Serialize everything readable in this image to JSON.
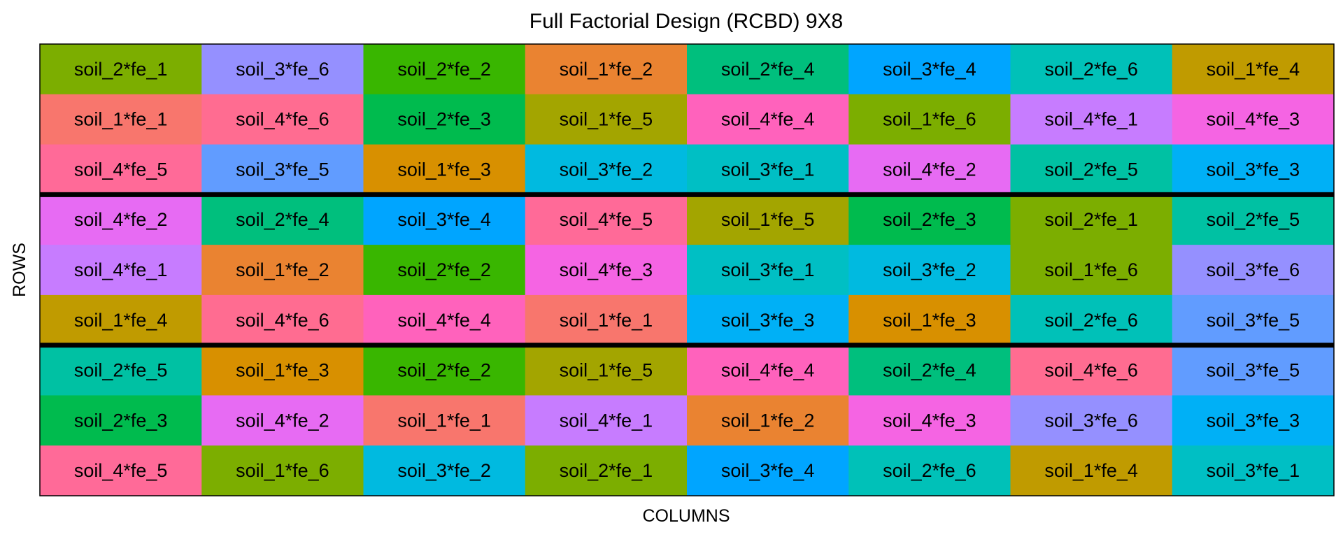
{
  "chart_data": {
    "type": "heatmap",
    "title": "Full Factorial Design (RCBD) 9X8",
    "xlabel": "COLUMNS",
    "ylabel": "ROWS",
    "n_rows": 9,
    "n_cols": 8,
    "block_boundaries_after_row": [
      3,
      6
    ],
    "colors": {
      "soil_1*fe_1": "#F8766D",
      "soil_1*fe_2": "#EA8331",
      "soil_1*fe_3": "#D89000",
      "soil_1*fe_4": "#C09B00",
      "soil_1*fe_5": "#A3A500",
      "soil_1*fe_6": "#7CAE00",
      "soil_2*fe_1": "#7CAE00",
      "soil_2*fe_2": "#39B600",
      "soil_2*fe_3": "#00BB4E",
      "soil_2*fe_4": "#00BF7D",
      "soil_2*fe_5": "#00C1A3",
      "soil_2*fe_6": "#00C1B8",
      "soil_3*fe_1": "#00BFC4",
      "soil_3*fe_2": "#00BAE0",
      "soil_3*fe_3": "#00B0F6",
      "soil_3*fe_4": "#00A5FF",
      "soil_3*fe_5": "#619CFF",
      "soil_3*fe_6": "#9590FF",
      "soil_4*fe_1": "#C77CFF",
      "soil_4*fe_2": "#E76BF3",
      "soil_4*fe_3": "#F564E3",
      "soil_4*fe_4": "#FF62BC",
      "soil_4*fe_5": "#FF6A98",
      "soil_4*fe_6": "#FF6C91"
    },
    "grid": [
      [
        "soil_2*fe_1",
        "soil_3*fe_6",
        "soil_2*fe_2",
        "soil_1*fe_2",
        "soil_2*fe_4",
        "soil_3*fe_4",
        "soil_2*fe_6",
        "soil_1*fe_4"
      ],
      [
        "soil_1*fe_1",
        "soil_4*fe_6",
        "soil_2*fe_3",
        "soil_1*fe_5",
        "soil_4*fe_4",
        "soil_1*fe_6",
        "soil_4*fe_1",
        "soil_4*fe_3"
      ],
      [
        "soil_4*fe_5",
        "soil_3*fe_5",
        "soil_1*fe_3",
        "soil_3*fe_2",
        "soil_3*fe_1",
        "soil_4*fe_2",
        "soil_2*fe_5",
        "soil_3*fe_3"
      ],
      [
        "soil_4*fe_2",
        "soil_2*fe_4",
        "soil_3*fe_4",
        "soil_4*fe_5",
        "soil_1*fe_5",
        "soil_2*fe_3",
        "soil_2*fe_1",
        "soil_2*fe_5"
      ],
      [
        "soil_4*fe_1",
        "soil_1*fe_2",
        "soil_2*fe_2",
        "soil_4*fe_3",
        "soil_3*fe_1",
        "soil_3*fe_2",
        "soil_1*fe_6",
        "soil_3*fe_6"
      ],
      [
        "soil_1*fe_4",
        "soil_4*fe_6",
        "soil_4*fe_4",
        "soil_1*fe_1",
        "soil_3*fe_3",
        "soil_1*fe_3",
        "soil_2*fe_6",
        "soil_3*fe_5"
      ],
      [
        "soil_2*fe_5",
        "soil_1*fe_3",
        "soil_2*fe_2",
        "soil_1*fe_5",
        "soil_4*fe_4",
        "soil_2*fe_4",
        "soil_4*fe_6",
        "soil_3*fe_5"
      ],
      [
        "soil_2*fe_3",
        "soil_4*fe_2",
        "soil_1*fe_1",
        "soil_4*fe_1",
        "soil_1*fe_2",
        "soil_4*fe_3",
        "soil_3*fe_6",
        "soil_3*fe_3"
      ],
      [
        "soil_4*fe_5",
        "soil_1*fe_6",
        "soil_3*fe_2",
        "soil_2*fe_1",
        "soil_3*fe_4",
        "soil_2*fe_6",
        "soil_1*fe_4",
        "soil_3*fe_1"
      ]
    ]
  }
}
